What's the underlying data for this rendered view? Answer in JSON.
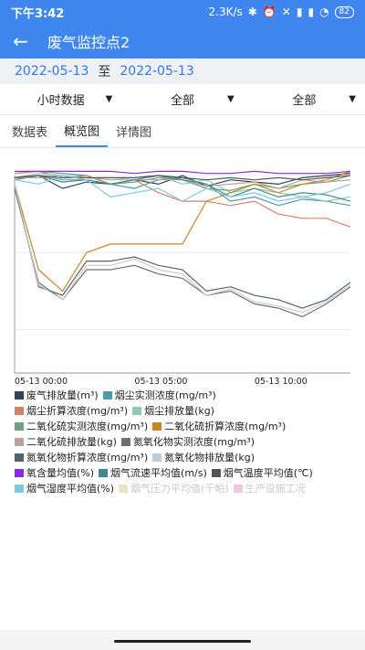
{
  "status": {
    "time": "下午3:42",
    "speed": "2.3K/s",
    "battery": "82"
  },
  "appbar": {
    "title": "废气监控点2"
  },
  "dates": {
    "start": "2022-05-13",
    "separator": "至",
    "end": "2022-05-13"
  },
  "filters": [
    "小时数据",
    "全部",
    "全部"
  ],
  "tabs": [
    {
      "label": "数据表",
      "active": false
    },
    {
      "label": "概览图",
      "active": true
    },
    {
      "label": "详情图",
      "active": false
    }
  ],
  "chart_data": {
    "type": "line",
    "x_tick_labels": [
      "05-13 00:00",
      "05-13 05:00",
      "05-13 10:00"
    ],
    "x_tick_index": [
      0,
      5,
      10
    ],
    "n_points": 15,
    "grid": true,
    "legend_position": "bottom",
    "series": [
      {
        "name": "废气排放量(m³)",
        "color": "#2f4554",
        "values": [
          0.92,
          0.94,
          0.88,
          0.91,
          0.9,
          0.92,
          0.9,
          0.94,
          0.89,
          0.92,
          0.91,
          0.9,
          0.93,
          0.94,
          0.95
        ]
      },
      {
        "name": "烟尘实测浓度(mg/m³)",
        "color": "#4a9ca7",
        "values": [
          0.95,
          0.96,
          0.95,
          0.94,
          0.9,
          0.88,
          0.92,
          0.93,
          0.9,
          0.82,
          0.84,
          0.8,
          0.83,
          0.82,
          0.8
        ]
      },
      {
        "name": "烟尘折算浓度(mg/m³)",
        "color": "#d48265",
        "values": [
          0.95,
          0.96,
          0.93,
          0.94,
          0.9,
          0.92,
          0.86,
          0.82,
          0.82,
          0.8,
          0.82,
          0.76,
          0.74,
          0.74,
          0.7
        ]
      },
      {
        "name": "烟尘排放量(kg)",
        "color": "#91c7ae",
        "values": [
          0.93,
          0.95,
          0.94,
          0.93,
          0.92,
          0.93,
          0.94,
          0.9,
          0.92,
          0.86,
          0.88,
          0.86,
          0.84,
          0.82,
          0.84
        ]
      },
      {
        "name": "二氧化硫实测浓度(mg/m³)",
        "color": "#749f83",
        "values": [
          0.92,
          0.94,
          0.92,
          0.92,
          0.9,
          0.91,
          0.93,
          0.92,
          0.88,
          0.87,
          0.9,
          0.88,
          0.9,
          0.91,
          0.94
        ]
      },
      {
        "name": "二氧化硫折算浓度(mg/m³)",
        "color": "#ca8622",
        "values": [
          0.9,
          0.5,
          0.4,
          0.58,
          0.62,
          0.62,
          0.62,
          0.62,
          0.82,
          0.86,
          0.9,
          0.86,
          0.9,
          0.92,
          0.96
        ]
      },
      {
        "name": "二氧化硫排放量(kg)",
        "color": "#bda29a",
        "values": [
          0.93,
          0.93,
          0.93,
          0.93,
          0.92,
          0.92,
          0.92,
          0.92,
          0.89,
          0.9,
          0.91,
          0.88,
          0.92,
          0.91,
          0.92
        ]
      },
      {
        "name": "氮氧化物实测浓度(mg/m³)",
        "color": "#6e7074",
        "values": [
          0.88,
          0.44,
          0.36,
          0.5,
          0.5,
          0.52,
          0.48,
          0.46,
          0.38,
          0.4,
          0.34,
          0.32,
          0.28,
          0.34,
          0.42
        ]
      },
      {
        "name": "氮氧化物折算浓度(mg/m³)",
        "color": "#546570",
        "values": [
          0.9,
          0.42,
          0.38,
          0.54,
          0.54,
          0.56,
          0.52,
          0.5,
          0.4,
          0.42,
          0.38,
          0.36,
          0.32,
          0.36,
          0.44
        ]
      },
      {
        "name": "氮氧化物排放量(kg)",
        "color": "#c4ccd3",
        "values": [
          0.9,
          0.43,
          0.36,
          0.52,
          0.52,
          0.55,
          0.5,
          0.48,
          0.38,
          0.41,
          0.35,
          0.33,
          0.3,
          0.35,
          0.43
        ]
      },
      {
        "name": "氧含量均值(%)",
        "color": "#8a2be2",
        "values": [
          0.96,
          0.96,
          0.96,
          0.96,
          0.96,
          0.95,
          0.96,
          0.96,
          0.95,
          0.95,
          0.96,
          0.95,
          0.95,
          0.95,
          0.96
        ]
      },
      {
        "name": "烟气流速平均值(m/s)",
        "color": "#3d8b8f",
        "values": [
          0.93,
          0.94,
          0.91,
          0.92,
          0.9,
          0.92,
          0.94,
          0.92,
          0.9,
          0.84,
          0.88,
          0.84,
          0.86,
          0.85,
          0.82
        ]
      },
      {
        "name": "烟气温度平均值(℃)",
        "color": "#555555",
        "values": [
          0.93,
          0.94,
          0.93,
          0.93,
          0.93,
          0.93,
          0.94,
          0.93,
          0.92,
          0.93,
          0.92,
          0.93,
          0.92,
          0.93,
          0.94
        ]
      },
      {
        "name": "烟气湿度平均值(%)",
        "color": "#7ec8e3",
        "values": [
          0.92,
          0.9,
          0.94,
          0.92,
          0.84,
          0.86,
          0.88,
          0.82,
          0.88,
          0.84,
          0.86,
          0.82,
          0.84,
          0.86,
          0.9
        ]
      },
      {
        "name": "烟气压力平均值(千帕)",
        "color": "#e8e4c9",
        "hidden": true,
        "values": []
      },
      {
        "name": "生产设施工况",
        "color": "#f0c8e0",
        "hidden": true,
        "values": []
      }
    ]
  }
}
